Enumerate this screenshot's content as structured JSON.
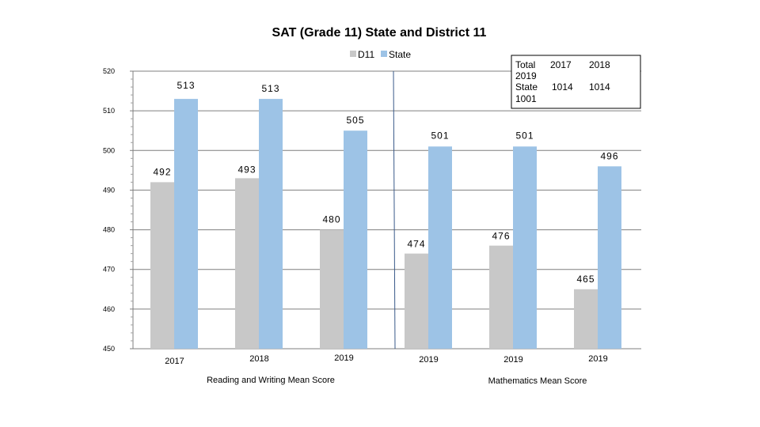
{
  "chart_data": {
    "type": "bar",
    "title": "SAT (Grade 11) State and District 11",
    "ylim": [
      450,
      520
    ],
    "y_ticks": [
      450,
      460,
      470,
      480,
      490,
      500,
      510,
      520
    ],
    "categories": [
      "2017",
      "2018",
      "2019",
      "2019",
      "2019",
      "2019"
    ],
    "series": [
      {
        "name": "D11",
        "color": "#c8c8c8",
        "values": [
          492,
          493,
          480,
          474,
          476,
          465
        ]
      },
      {
        "name": "State",
        "color": "#9dc3e6",
        "values": [
          513,
          513,
          505,
          501,
          501,
          496
        ]
      }
    ],
    "group_labels": [
      {
        "text": "Reading  and Writing Mean Score",
        "categories": [
          0,
          2
        ]
      },
      {
        "text": "Mathematics Mean Score",
        "categories": [
          3,
          5
        ]
      }
    ],
    "divider_after_category": 2,
    "inset_table": {
      "rows": [
        [
          "Total",
          "2017",
          "2018"
        ],
        [
          "2019",
          "",
          ""
        ],
        [
          "State",
          "1014",
          "1014"
        ],
        [
          "1001",
          "",
          ""
        ]
      ]
    }
  }
}
